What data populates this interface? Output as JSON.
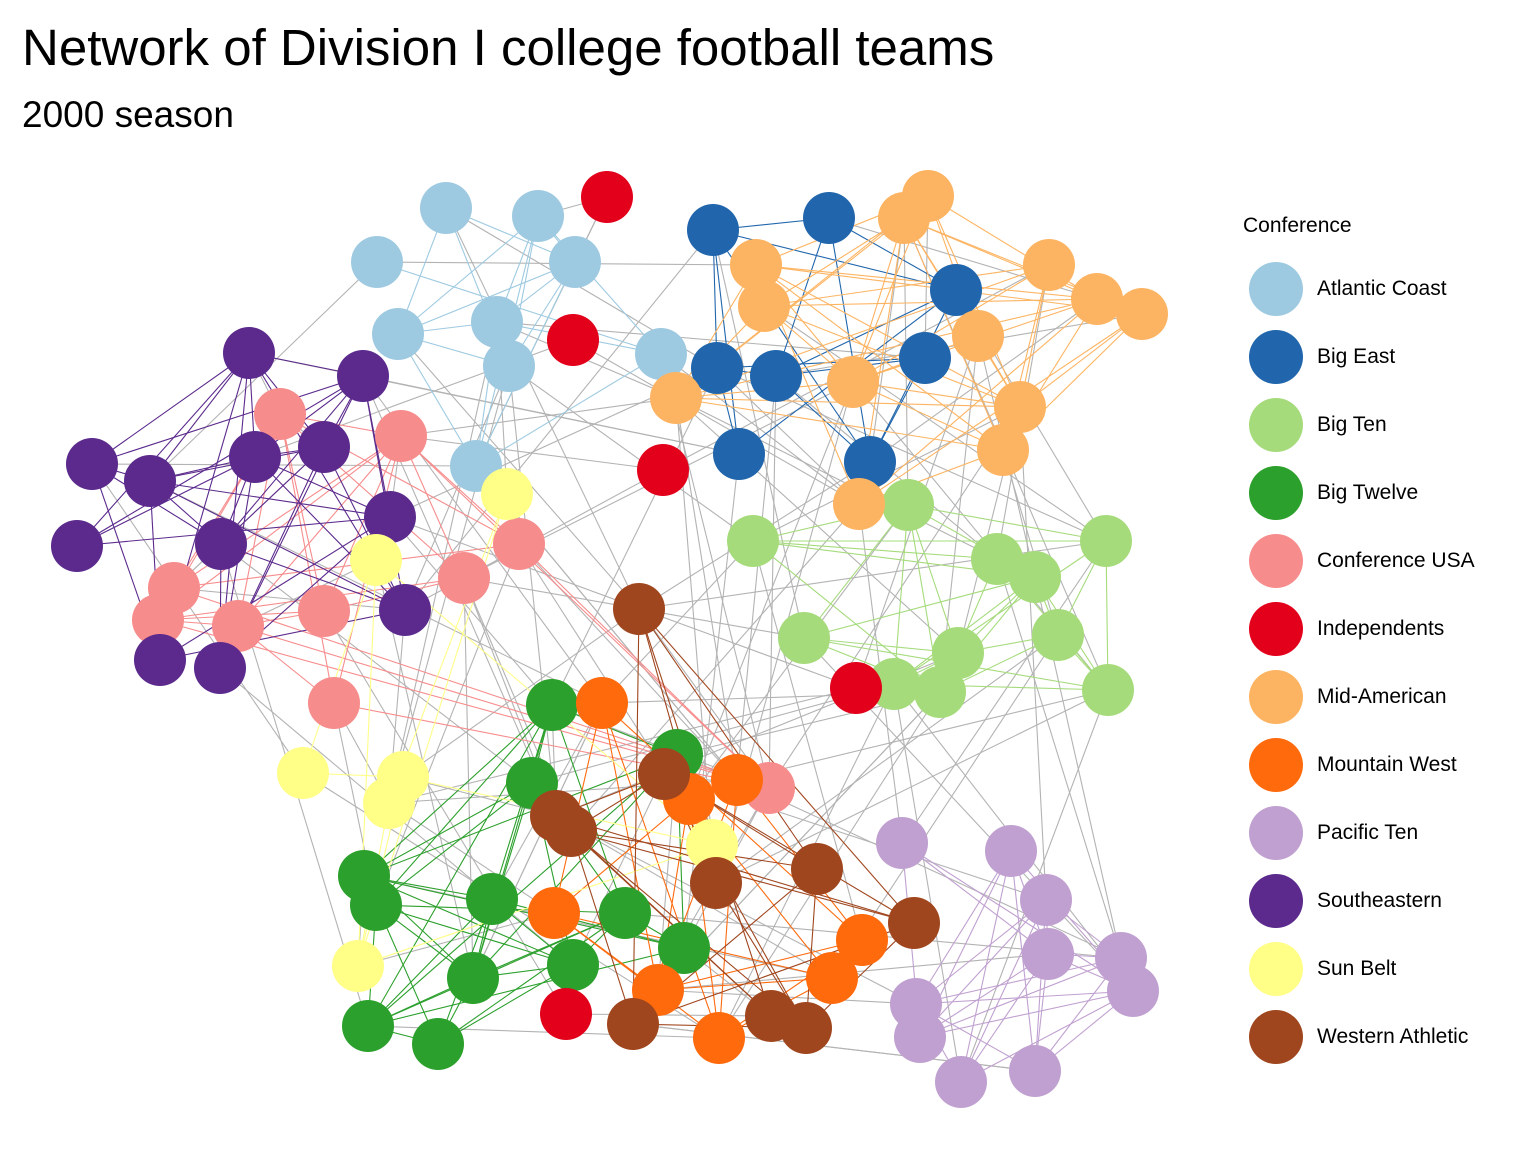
{
  "title": "Network of Division I college football teams",
  "subtitle": "2000 season",
  "legend": {
    "title": "Conference",
    "items": [
      {
        "label": "Atlantic Coast",
        "color": "#9ecae1"
      },
      {
        "label": "Big East",
        "color": "#2166ac"
      },
      {
        "label": "Big Ten",
        "color": "#a6db7c"
      },
      {
        "label": "Big Twelve",
        "color": "#2ca02c"
      },
      {
        "label": "Conference USA",
        "color": "#f78c8c"
      },
      {
        "label": "Independents",
        "color": "#e3001b"
      },
      {
        "label": "Mid-American",
        "color": "#fdb462"
      },
      {
        "label": "Mountain West",
        "color": "#ff6a0d"
      },
      {
        "label": "Pacific Ten",
        "color": "#c0a0d0"
      },
      {
        "label": "Southeastern",
        "color": "#5b2a8c"
      },
      {
        "label": "Sun Belt",
        "color": "#ffff88"
      },
      {
        "label": "Western Athletic",
        "color": "#a0461e"
      }
    ]
  },
  "edge_color": "#b3b3b3"
}
